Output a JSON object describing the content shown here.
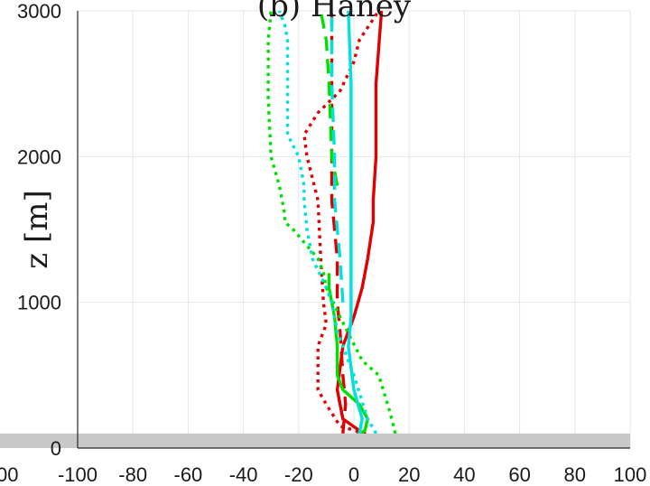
{
  "chart_data": {
    "type": "line",
    "title": "(b) Haney",
    "ylabel": "z [m]",
    "xlabel": "",
    "xlim": [
      -100,
      100
    ],
    "ylim": [
      0,
      3000
    ],
    "x_ticks": [
      "-100",
      "-80",
      "-60",
      "-40",
      "-20",
      "0",
      "20",
      "40",
      "60",
      "80",
      "100"
    ],
    "y_ticks": [
      "0",
      "1000",
      "2000",
      "3000"
    ],
    "left_edge_tick": "00",
    "grid": true,
    "terrain_band_top_m": 100,
    "colors": {
      "red": "#e00000",
      "green": "#00e000",
      "cyan": "#00e0e0",
      "grid": "#e6e6e6",
      "terrain": "#c8c8c8"
    },
    "series": [
      {
        "color": "red",
        "style": "solid",
        "points": [
          [
            0,
            40
          ],
          [
            2,
            120
          ],
          [
            -4,
            200
          ],
          [
            -6,
            400
          ],
          [
            -4,
            700
          ],
          [
            0,
            900
          ],
          [
            3,
            1100
          ],
          [
            5,
            1300
          ],
          [
            7,
            1550
          ],
          [
            7,
            1700
          ],
          [
            8,
            2000
          ],
          [
            8,
            2500
          ],
          [
            10,
            3000
          ]
        ]
      },
      {
        "color": "red",
        "style": "dashed",
        "points": [
          [
            -4,
            100
          ],
          [
            -3,
            300
          ],
          [
            -4,
            500
          ],
          [
            -5,
            800
          ],
          [
            -6,
            1000
          ],
          [
            -6,
            1300
          ],
          [
            -7,
            1500
          ],
          [
            -8,
            1700
          ],
          [
            -8,
            2000
          ],
          [
            -8,
            2500
          ],
          [
            -8,
            3000
          ]
        ]
      },
      {
        "color": "red",
        "style": "dotted",
        "points": [
          [
            4,
            40
          ],
          [
            4,
            100
          ],
          [
            -5,
            150
          ],
          [
            -10,
            300
          ],
          [
            -13,
            400
          ],
          [
            -13,
            700
          ],
          [
            -10,
            850
          ],
          [
            -11,
            1000
          ],
          [
            -12,
            1300
          ],
          [
            -13,
            1700
          ],
          [
            -17,
            2000
          ],
          [
            -18,
            2150
          ],
          [
            -13,
            2300
          ],
          [
            -5,
            2450
          ],
          [
            0,
            2650
          ],
          [
            2,
            2800
          ],
          [
            9,
            3000
          ]
        ]
      },
      {
        "color": "green",
        "style": "solid",
        "points": [
          [
            -1,
            60
          ],
          [
            4,
            120
          ],
          [
            5,
            200
          ],
          [
            2,
            300
          ],
          [
            -4,
            400
          ],
          [
            -6,
            500
          ],
          [
            -6,
            700
          ],
          [
            -7,
            900
          ],
          [
            -8,
            1000
          ],
          [
            -9,
            1100
          ],
          [
            -9,
            1200
          ]
        ]
      },
      {
        "color": "green",
        "style": "dashed",
        "points": [
          [
            -6,
            1800
          ],
          [
            -8,
            2000
          ],
          [
            -9,
            2500
          ],
          [
            -10,
            2800
          ],
          [
            -12,
            3000
          ]
        ]
      },
      {
        "color": "green",
        "style": "dotted",
        "points": [
          [
            15,
            100
          ],
          [
            13,
            250
          ],
          [
            9,
            500
          ],
          [
            3,
            600
          ],
          [
            -5,
            900
          ],
          [
            -10,
            1100
          ],
          [
            -11,
            1200
          ],
          [
            -13,
            1300
          ],
          [
            -22,
            1500
          ],
          [
            -25,
            1550
          ],
          [
            -25,
            1600
          ],
          [
            -27,
            1800
          ],
          [
            -30,
            2000
          ],
          [
            -31,
            2400
          ],
          [
            -31,
            2800
          ],
          [
            -30,
            3000
          ]
        ]
      },
      {
        "color": "cyan",
        "style": "solid",
        "points": [
          [
            -2,
            40
          ],
          [
            2,
            100
          ],
          [
            3,
            200
          ],
          [
            0,
            400
          ],
          [
            -2,
            700
          ],
          [
            -1,
            900
          ],
          [
            -1,
            1300
          ],
          [
            -1,
            1700
          ],
          [
            -1,
            2000
          ],
          [
            -1,
            2500
          ],
          [
            -2,
            3000
          ]
        ]
      },
      {
        "color": "cyan",
        "style": "dashed",
        "points": [
          [
            -4,
            1000
          ],
          [
            -5,
            1300
          ],
          [
            -6,
            1500
          ],
          [
            -7,
            1700
          ],
          [
            -7,
            2000
          ],
          [
            -8,
            2500
          ],
          [
            -8,
            3000
          ]
        ]
      },
      {
        "color": "cyan",
        "style": "dotted",
        "points": [
          [
            8,
            100
          ],
          [
            5,
            200
          ],
          [
            0,
            500
          ],
          [
            -6,
            800
          ],
          [
            -8,
            1000
          ],
          [
            -10,
            1100
          ],
          [
            -15,
            1300
          ],
          [
            -17,
            1500
          ],
          [
            -18,
            1700
          ],
          [
            -18,
            1800
          ],
          [
            -20,
            2000
          ],
          [
            -24,
            2150
          ],
          [
            -24,
            2400
          ],
          [
            -24,
            2800
          ],
          [
            -25,
            2900
          ],
          [
            -27,
            3000
          ]
        ]
      }
    ]
  }
}
